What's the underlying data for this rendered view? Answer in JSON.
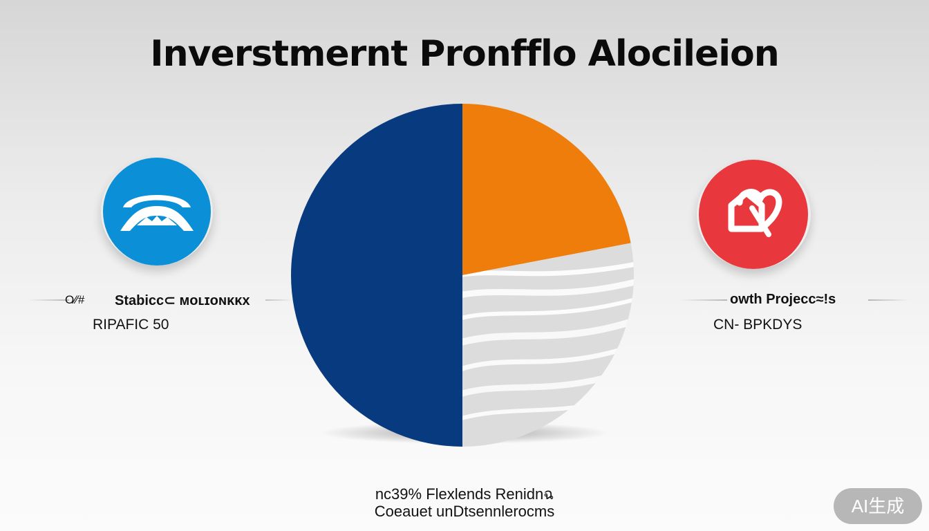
{
  "chart_data": {
    "type": "pie",
    "title": "Inverstmernt Pronfflo Alocileion",
    "slices": [
      {
        "label": "",
        "value": 50,
        "color": "#073a7e"
      },
      {
        "label": "",
        "value": 22,
        "color": "#ef7d0b"
      },
      {
        "label": "",
        "value": 28,
        "color": "#dcdcdc"
      }
    ]
  },
  "left_panel": {
    "icon": "arch-icon",
    "icon_color": "#0b8fd6",
    "prefix": "O⁄∕#",
    "label": "Stabicc⊂ ᴍᴏʟɪᴏɴᴋᴋx",
    "sublabel": "RIPAFIC 50"
  },
  "right_panel": {
    "icon": "growth-house-icon",
    "icon_color": "#e8383e",
    "label": "owth Projecc≈!s",
    "sublabel": "CN- BPKDYS"
  },
  "footer": {
    "line1": "nc39% Flexlends Renidnฉ",
    "line2": "Coeauet unDtsennlerocms"
  },
  "watermark": "AI生成"
}
